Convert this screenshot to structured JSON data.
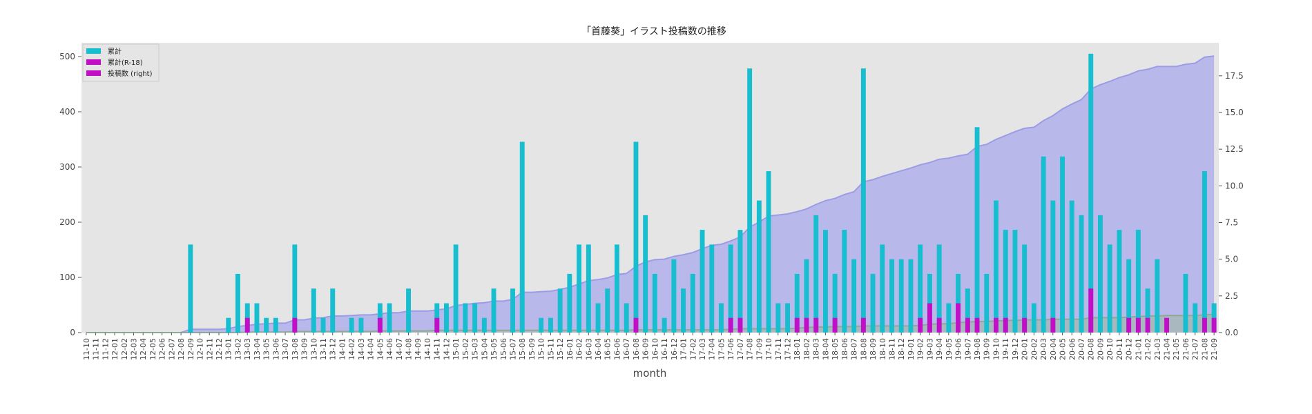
{
  "chart_data": {
    "type": "bar",
    "title": "「首藤葵」イラスト投稿数の推移",
    "xlabel": "month",
    "ylabel": "",
    "ylim": [
      0,
      525
    ],
    "y2lim": [
      0,
      19.75
    ],
    "yticks": [
      0,
      100,
      200,
      300,
      400,
      500
    ],
    "y2ticks": [
      "0.0",
      "2.5",
      "5.0",
      "7.5",
      "10.0",
      "12.5",
      "15.0",
      "17.5"
    ],
    "legend_position": "top-left",
    "grid": false,
    "colors": {
      "plot_bg": "#e5e5e5",
      "total": "#17becf",
      "r18": "#c20fc7",
      "area": "#b0b0eb",
      "area_line": "#9c9ce6"
    },
    "legend": [
      "累計",
      "累計(R-18)",
      "投稿数 (right)"
    ],
    "categories": [
      "11-10",
      "11-11",
      "11-12",
      "12-01",
      "12-02",
      "12-03",
      "12-04",
      "12-05",
      "12-06",
      "12-07",
      "12-08",
      "12-09",
      "12-10",
      "12-11",
      "12-12",
      "13-01",
      "13-02",
      "13-03",
      "13-04",
      "13-05",
      "13-06",
      "13-07",
      "13-08",
      "13-09",
      "13-10",
      "13-11",
      "13-12",
      "14-01",
      "14-02",
      "14-03",
      "14-04",
      "14-05",
      "14-06",
      "14-07",
      "14-08",
      "14-09",
      "14-10",
      "14-11",
      "14-12",
      "15-01",
      "15-02",
      "15-03",
      "15-04",
      "15-05",
      "15-06",
      "15-07",
      "15-08",
      "15-09",
      "15-10",
      "15-11",
      "15-12",
      "16-01",
      "16-02",
      "16-03",
      "16-04",
      "16-05",
      "16-06",
      "16-07",
      "16-08",
      "16-09",
      "16-10",
      "16-11",
      "16-12",
      "17-01",
      "17-02",
      "17-03",
      "17-04",
      "17-05",
      "17-06",
      "17-07",
      "17-08",
      "17-09",
      "17-10",
      "17-11",
      "17-12",
      "18-01",
      "18-02",
      "18-03",
      "18-04",
      "18-05",
      "18-06",
      "18-07",
      "18-08",
      "18-09",
      "18-10",
      "18-11",
      "18-12",
      "19-01",
      "19-02",
      "19-03",
      "19-04",
      "19-05",
      "19-06",
      "19-07",
      "19-08",
      "19-09",
      "19-10",
      "19-11",
      "19-12",
      "20-01",
      "20-02",
      "20-03",
      "20-04",
      "20-05",
      "20-06",
      "20-07",
      "20-08",
      "20-09",
      "20-10",
      "20-11",
      "20-12",
      "21-01",
      "21-02",
      "21-03",
      "21-04",
      "21-05",
      "21-06",
      "21-07",
      "21-08",
      "21-09"
    ],
    "series": [
      {
        "name": "累計",
        "axis": "right",
        "values": [
          0,
          0,
          0,
          0,
          0,
          0,
          0,
          0,
          0,
          0,
          0,
          6,
          0,
          0,
          0,
          1,
          4,
          2,
          2,
          1,
          1,
          0,
          6,
          0,
          3,
          1,
          3,
          0,
          1,
          1,
          0,
          2,
          2,
          0,
          3,
          0,
          0,
          2,
          2,
          6,
          2,
          2,
          1,
          3,
          0,
          3,
          13,
          0,
          1,
          1,
          3,
          4,
          6,
          6,
          2,
          3,
          6,
          2,
          13,
          8,
          4,
          1,
          5,
          3,
          4,
          7,
          6,
          2,
          6,
          7,
          18,
          9,
          11,
          2,
          2,
          4,
          5,
          8,
          7,
          4,
          7,
          5,
          18,
          4,
          6,
          5,
          5,
          5,
          6,
          4,
          6,
          2,
          4,
          3,
          14,
          4,
          9,
          7,
          7,
          6,
          2,
          12,
          9,
          12,
          9,
          8,
          19,
          8,
          6,
          7,
          5,
          7,
          3,
          5,
          0,
          0,
          4,
          2,
          11,
          2
        ]
      },
      {
        "name": "累計(R-18)",
        "axis": "right",
        "values": [
          0,
          0,
          0,
          0,
          0,
          0,
          0,
          0,
          0,
          0,
          0,
          0,
          0,
          0,
          0,
          0,
          0,
          1,
          0,
          0,
          0,
          0,
          1,
          0,
          0,
          0,
          0,
          0,
          0,
          0,
          0,
          1,
          0,
          0,
          0,
          0,
          0,
          1,
          0,
          0,
          0,
          0,
          0,
          0,
          0,
          0,
          0,
          0,
          0,
          0,
          0,
          0,
          0,
          0,
          0,
          0,
          0,
          0,
          1,
          0,
          0,
          0,
          0,
          0,
          0,
          0,
          0,
          0,
          1,
          1,
          0,
          0,
          0,
          0,
          0,
          1,
          1,
          1,
          0,
          1,
          0,
          0,
          1,
          0,
          0,
          0,
          0,
          0,
          1,
          2,
          1,
          0,
          2,
          1,
          1,
          0,
          1,
          1,
          0,
          1,
          0,
          0,
          1,
          0,
          0,
          0,
          3,
          0,
          0,
          0,
          1,
          1,
          1,
          0,
          1,
          0,
          0,
          0,
          1,
          1
        ]
      },
      {
        "name": "投稿数 (right)",
        "axis": "left",
        "type": "area",
        "values": [
          0,
          0,
          0,
          0,
          0,
          0,
          0,
          0,
          0,
          0,
          0,
          6,
          6,
          6,
          6,
          7,
          11,
          13,
          15,
          16,
          17,
          17,
          23,
          23,
          26,
          27,
          30,
          30,
          31,
          32,
          32,
          34,
          36,
          36,
          39,
          39,
          39,
          41,
          43,
          49,
          51,
          53,
          54,
          57,
          57,
          60,
          73,
          73,
          74,
          75,
          78,
          82,
          88,
          94,
          96,
          99,
          105,
          107,
          120,
          128,
          132,
          133,
          138,
          141,
          145,
          152,
          158,
          160,
          166,
          173,
          191,
          200,
          211,
          213,
          215,
          219,
          224,
          232,
          239,
          243,
          250,
          255,
          273,
          277,
          283,
          288,
          293,
          298,
          304,
          308,
          314,
          316,
          320,
          323,
          337,
          341,
          350,
          357,
          364,
          370,
          372,
          384,
          393,
          405,
          414,
          422,
          441,
          449,
          455,
          462,
          467,
          474,
          477,
          482,
          482,
          482,
          486,
          488,
          499,
          501
        ]
      },
      {
        "name": "",
        "axis": "left",
        "type": "area",
        "values": [
          0,
          0,
          0,
          0,
          0,
          0,
          0,
          0,
          0,
          0,
          0,
          0,
          0,
          0,
          0,
          0,
          0,
          1,
          1,
          1,
          1,
          1,
          2,
          2,
          2,
          2,
          2,
          2,
          2,
          2,
          2,
          3,
          3,
          3,
          3,
          3,
          3,
          4,
          4,
          4,
          4,
          4,
          4,
          4,
          4,
          4,
          4,
          4,
          4,
          4,
          4,
          4,
          4,
          4,
          4,
          4,
          4,
          4,
          5,
          5,
          5,
          5,
          5,
          5,
          5,
          5,
          5,
          5,
          6,
          7,
          7,
          7,
          7,
          7,
          7,
          8,
          9,
          10,
          10,
          11,
          11,
          11,
          12,
          12,
          12,
          12,
          12,
          12,
          13,
          15,
          16,
          16,
          18,
          19,
          20,
          20,
          21,
          22,
          22,
          23,
          23,
          23,
          24,
          24,
          24,
          24,
          27,
          27,
          27,
          27,
          28,
          29,
          30,
          30,
          31,
          31,
          31,
          31,
          32,
          33
        ]
      }
    ]
  }
}
